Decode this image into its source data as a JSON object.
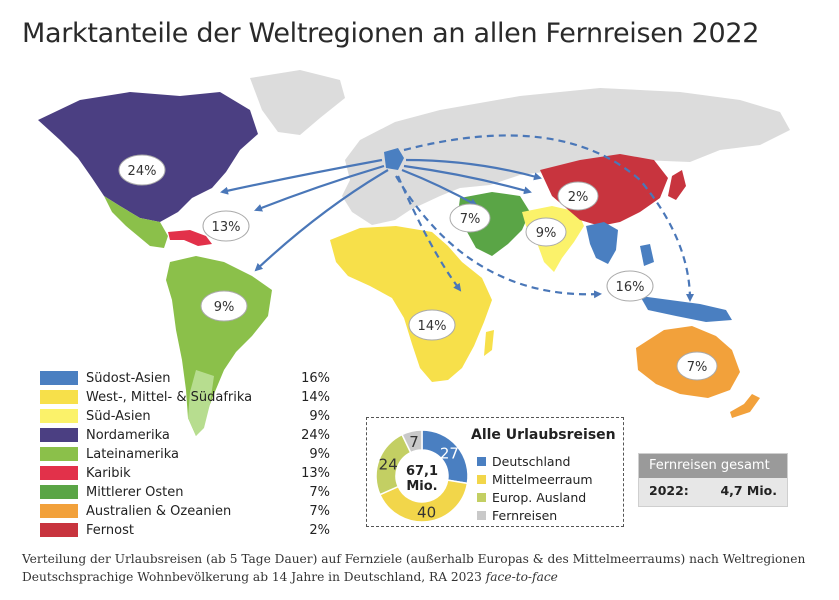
{
  "title": "Marktanteile der Weltregionen an allen Fernreisen 2022",
  "colors": {
    "suedost_asien": "#4a7fc1",
    "afrika": "#f7e04a",
    "sued_asien": "#fbf26a",
    "nordamerika": "#4b3f82",
    "lateinamerika": "#8bc04a",
    "karibik": "#e2314a",
    "mittlerer_osten": "#5aa546",
    "australien": "#f2a13b",
    "fernost": "#c8343e",
    "germany": "#4a7fc1",
    "arrow": "#4a77b8",
    "land_grey": "#dcdcdc"
  },
  "regions": [
    {
      "key": "suedost_asien",
      "name": "Südost-Asien",
      "value": "16%"
    },
    {
      "key": "afrika",
      "name": "West-, Mittel- & Südafrika",
      "value": "14%"
    },
    {
      "key": "sued_asien",
      "name": "Süd-Asien",
      "value": "9%"
    },
    {
      "key": "nordamerika",
      "name": "Nordamerika",
      "value": "24%"
    },
    {
      "key": "lateinamerika",
      "name": "Lateinamerika",
      "value": "9%"
    },
    {
      "key": "karibik",
      "name": "Karibik",
      "value": "13%"
    },
    {
      "key": "mittlerer_osten",
      "name": "Mittlerer Osten",
      "value": "7%"
    },
    {
      "key": "australien",
      "name": "Australien & Ozeanien",
      "value": "7%"
    },
    {
      "key": "fernost",
      "name": "Fernost",
      "value": "2%"
    }
  ],
  "map_labels": {
    "nordamerika": "24%",
    "karibik": "13%",
    "lateinamerika": "9%",
    "afrika": "14%",
    "mittlerer_osten": "7%",
    "sued_asien": "9%",
    "fernost": "2%",
    "suedost_asien": "16%",
    "australien": "7%"
  },
  "urlaubsreisen": {
    "title": "Alle Urlaubsreisen",
    "center_value": "67,1",
    "center_unit": "Mio.",
    "segments": [
      {
        "label": "Deutschland",
        "value": 27,
        "color": "#4a7fc1"
      },
      {
        "label": "Mittelmeerraum",
        "value": 40,
        "color": "#f2d64a"
      },
      {
        "label": "Europ. Ausland",
        "value": 24,
        "color": "#c3cf63"
      },
      {
        "label": "Fernreisen",
        "value": 7,
        "color": "#c9c9c9"
      }
    ]
  },
  "fernreisen_gesamt": {
    "header": "Fernreisen gesamt",
    "year": "2022:",
    "value": "4,7 Mio."
  },
  "footer": {
    "line1": "Verteilung der Urlaubsreisen (ab 5 Tage Dauer) auf Fernziele (außerhalb Europas & des Mittelmeerraums) nach Weltregionen",
    "line2": "Deutschsprachige Wohnbevölkerung ab 14 Jahre in Deutschland, RA 2023 ",
    "line2_italic": "face-to-face"
  }
}
